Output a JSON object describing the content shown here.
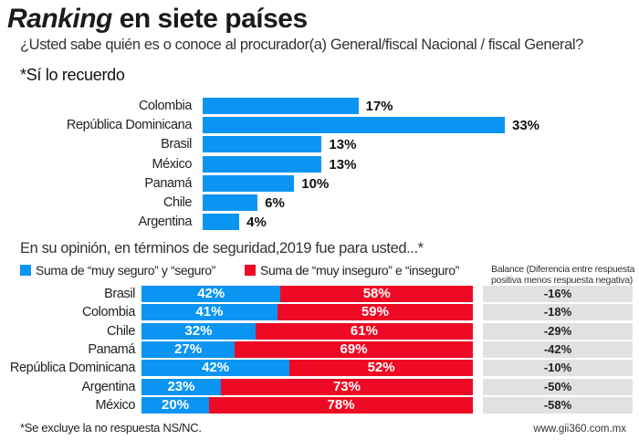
{
  "title": {
    "italic": "Ranking",
    "rest": " en siete países"
  },
  "subtitle": "¿Usted sabe quién es o conoce al procurador(a) General/fiscal Nacional / fiscal General?",
  "colors": {
    "blue": "#0b95f2",
    "red": "#ee0a24",
    "balance_bg": "#e1e1e1"
  },
  "chart_data": [
    {
      "type": "bar",
      "orientation": "horizontal",
      "title": "*Sí lo recuerdo",
      "categories": [
        "Colombia",
        "República Dominicana",
        "Brasil",
        "México",
        "Panamá",
        "Chile",
        "Argentina"
      ],
      "values": [
        17,
        33,
        13,
        13,
        10,
        6,
        4
      ],
      "labels": [
        "17%",
        "33%",
        "13%",
        "13%",
        "10%",
        "6%",
        "4%"
      ],
      "unit": "%"
    },
    {
      "type": "bar",
      "orientation": "horizontal",
      "stacked": true,
      "title": "En su opinión, en términos de seguridad,2019 fue para usted...*",
      "categories": [
        "Brasil",
        "Colombia",
        "Chile",
        "Panamá",
        "República Dominicana",
        "Argentina",
        "México"
      ],
      "series": [
        {
          "name": "Suma de “muy seguro” y “seguro”",
          "color": "#0b95f2",
          "values": [
            42,
            41,
            32,
            27,
            42,
            23,
            20
          ]
        },
        {
          "name": "Suma de “muy inseguro” e “inseguro”",
          "color": "#ee0a24",
          "values": [
            58,
            59,
            61,
            69,
            52,
            73,
            78
          ]
        }
      ],
      "balance": {
        "header": [
          "Balance (Diferencia entre respuesta",
          "positiva menos respuesta negativa)"
        ],
        "values": [
          -16,
          -18,
          -29,
          -42,
          -10,
          -50,
          -58
        ],
        "labels": [
          "-16%",
          "-18%",
          "-29%",
          "-42%",
          "-10%",
          "-50%",
          "-58%"
        ]
      },
      "legend": "top"
    }
  ],
  "footnote": "*Se excluye la no respuesta NS/NC.",
  "source": "www.gii360.com.mx"
}
